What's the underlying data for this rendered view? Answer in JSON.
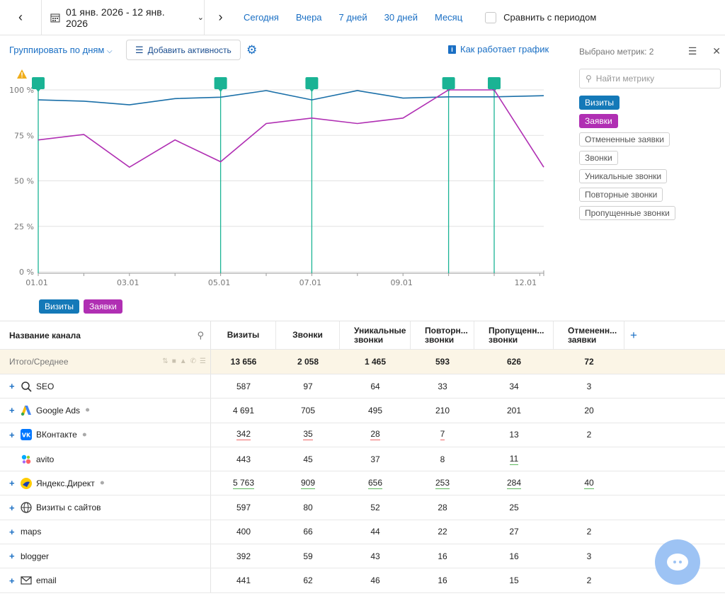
{
  "topbar": {
    "date_range": "01 янв. 2026 - 12 янв. 2026",
    "periods": [
      "Сегодня",
      "Вчера",
      "7 дней",
      "30 дней",
      "Месяц"
    ],
    "compare_label": "Сравнить с периодом"
  },
  "toolbar": {
    "group_by": "Группировать по дням",
    "add_activity": "Добавить активность",
    "how_works": "Как работает график"
  },
  "metrics_panel": {
    "selected_label": "Выбрано метрик: 2",
    "search_placeholder": "Найти метрику",
    "tags": [
      {
        "label": "Визиты",
        "active": true,
        "color": "#1479b8"
      },
      {
        "label": "Заявки",
        "active": true,
        "color": "#b02fb3"
      },
      {
        "label": "Отмененные заявки",
        "active": false
      },
      {
        "label": "Звонки",
        "active": false
      },
      {
        "label": "Уникальные звонки",
        "active": false
      },
      {
        "label": "Повторные звонки",
        "active": false
      },
      {
        "label": "Пропущенные звонки",
        "active": false
      }
    ]
  },
  "chart_data": {
    "type": "line",
    "x": [
      "01.01",
      "02.01",
      "03.01",
      "04.01",
      "05.01",
      "06.01",
      "07.01",
      "08.01",
      "09.01",
      "10.01",
      "11.01",
      "12.01"
    ],
    "x_tick_labels": [
      "01.01",
      "03.01",
      "05.01",
      "07.01",
      "09.01",
      "12.01"
    ],
    "y_tick_labels": [
      "0 %",
      "25 %",
      "50 %",
      "75 %",
      "100 %"
    ],
    "ylim": [
      0,
      100
    ],
    "grid": true,
    "series": [
      {
        "name": "Визиты",
        "color": "#1a6fa8",
        "values": [
          94.5,
          93.8,
          91.8,
          95.2,
          96.0,
          99.6,
          94.5,
          99.6,
          95.5,
          96.2,
          96.2,
          96.8
        ]
      },
      {
        "name": "Заявки",
        "color": "#b02fb3",
        "values": [
          72.5,
          75.5,
          57.5,
          72.5,
          60.5,
          81.5,
          84.5,
          81.5,
          84.5,
          100,
          100,
          57.5
        ]
      }
    ],
    "activity_markers": [
      "01.01",
      "05.01",
      "07.01",
      "10.01",
      "11.01"
    ],
    "marker_color": "#1ab394"
  },
  "legend": [
    {
      "label": "Визиты",
      "color": "#1479b8"
    },
    {
      "label": "Заявки",
      "color": "#b02fb3"
    }
  ],
  "table": {
    "name_header": "Название канала",
    "columns": [
      "Визиты",
      "Звонки",
      "Уникальные звонки",
      "Повторн... звонки",
      "Пропущенн... звонки",
      "Отмененн... заявки"
    ],
    "total": {
      "label": "Итого/Среднее",
      "values": [
        "13 656",
        "2 058",
        "1 465",
        "593",
        "626",
        "72"
      ]
    },
    "rows": [
      {
        "name": "SEO",
        "icon": "search-icon",
        "expandable": true,
        "plug": false,
        "values": [
          "587",
          "97",
          "64",
          "33",
          "34",
          "3"
        ],
        "underline": [
          "",
          "",
          "",
          "",
          "",
          ""
        ]
      },
      {
        "name": "Google Ads",
        "icon": "google-ads-icon",
        "expandable": true,
        "plug": true,
        "values": [
          "4 691",
          "705",
          "495",
          "210",
          "201",
          "20"
        ],
        "underline": [
          "",
          "",
          "",
          "",
          "",
          ""
        ]
      },
      {
        "name": "ВКонтакте",
        "icon": "vk-icon",
        "expandable": true,
        "plug": true,
        "values": [
          "342",
          "35",
          "28",
          "7",
          "13",
          "2"
        ],
        "underline": [
          "red",
          "red",
          "red",
          "red",
          "",
          ""
        ]
      },
      {
        "name": "avito",
        "icon": "avito-icon",
        "expandable": false,
        "plug": false,
        "values": [
          "443",
          "45",
          "37",
          "8",
          "11",
          ""
        ],
        "underline": [
          "",
          "",
          "",
          "",
          "green",
          ""
        ]
      },
      {
        "name": "Яндекс.Директ",
        "icon": "yandex-direct-icon",
        "expandable": true,
        "plug": true,
        "values": [
          "5 763",
          "909",
          "656",
          "253",
          "284",
          "40"
        ],
        "underline": [
          "green",
          "green",
          "green",
          "green",
          "green",
          "green"
        ]
      },
      {
        "name": "Визиты с сайтов",
        "icon": "globe-icon",
        "expandable": true,
        "plug": false,
        "values": [
          "597",
          "80",
          "52",
          "28",
          "25",
          ""
        ],
        "underline": [
          "",
          "",
          "",
          "",
          "",
          ""
        ]
      },
      {
        "name": "maps",
        "icon": "",
        "expandable": true,
        "plug": false,
        "values": [
          "400",
          "66",
          "44",
          "22",
          "27",
          "2"
        ],
        "underline": [
          "",
          "",
          "",
          "",
          "",
          ""
        ]
      },
      {
        "name": "blogger",
        "icon": "",
        "expandable": true,
        "plug": false,
        "values": [
          "392",
          "59",
          "43",
          "16",
          "16",
          "3"
        ],
        "underline": [
          "",
          "",
          "",
          "",
          "",
          ""
        ]
      },
      {
        "name": "email",
        "icon": "mail-icon",
        "expandable": true,
        "plug": false,
        "values": [
          "441",
          "62",
          "46",
          "16",
          "15",
          "2"
        ],
        "underline": [
          "",
          "",
          "",
          "",
          "",
          ""
        ]
      }
    ]
  }
}
